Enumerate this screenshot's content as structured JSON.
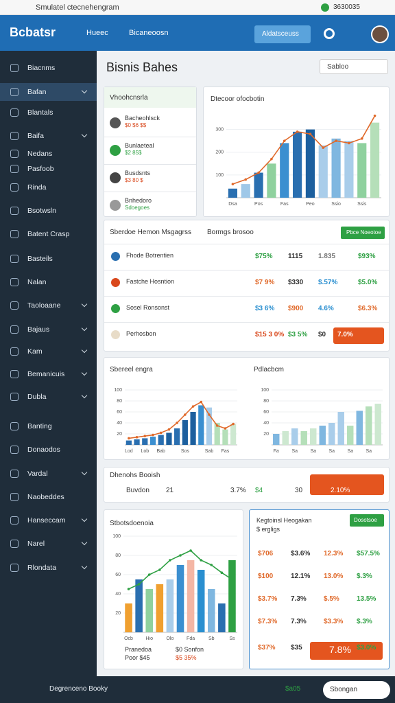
{
  "status_bar": {
    "title": "Smulatel ctecnehengram",
    "time": "3630035"
  },
  "header": {
    "logo": "Bcbatsr",
    "nav": [
      "Hueec",
      "Bicaneoosn"
    ],
    "button": "Aldatsceuss"
  },
  "sidebar": {
    "items": [
      {
        "label": "Biacnms",
        "expand": false
      },
      {
        "label": "Bafan",
        "expand": true
      },
      {
        "label": "Blantals",
        "expand": false
      },
      {
        "label": "Baifa",
        "expand": true
      },
      {
        "label": "Nedans",
        "expand": false
      },
      {
        "label": "Pasfoob",
        "expand": false
      },
      {
        "label": "Rinda",
        "expand": false
      },
      {
        "label": "Bsotwsln",
        "expand": false
      },
      {
        "label": "Batent Crasp",
        "expand": false
      },
      {
        "label": "Basteils",
        "expand": false
      },
      {
        "label": "Nalan",
        "expand": false
      },
      {
        "label": "Taoloaane",
        "expand": true
      },
      {
        "label": "Bajaus",
        "expand": true
      },
      {
        "label": "Kam",
        "expand": true
      },
      {
        "label": "Bemanicuis",
        "expand": true
      },
      {
        "label": "Dubla",
        "expand": true
      },
      {
        "label": "Banting",
        "expand": false
      },
      {
        "label": "Donaodos",
        "expand": false
      },
      {
        "label": "Vardal",
        "expand": true
      },
      {
        "label": "Naobeddes",
        "expand": false
      },
      {
        "label": "Hanseccam",
        "expand": true
      },
      {
        "label": "Narel",
        "expand": true
      },
      {
        "label": "Rlondata",
        "expand": true
      }
    ]
  },
  "page": {
    "title": "Bisnis Bahes",
    "dropdown": "Sabloo"
  },
  "list_card": {
    "title": "Vhoohcnsrla",
    "items": [
      {
        "name": "Bacheohlsck",
        "sub": "$0 $6 $$"
      },
      {
        "name": "Bunlaeteal",
        "sub": "$2 85$"
      },
      {
        "name": "Busdsnts",
        "sub": "$3 80 $"
      },
      {
        "name": "Bnhedoro",
        "sub": "Sdoegoes"
      }
    ]
  },
  "table": {
    "title": "Sberdoe Hemon Msgagrss",
    "subtitle": "Bormgs brosoo",
    "button": "Pbce Noeotoe",
    "rows": [
      {
        "name": "Fhode Botrentien",
        "cells": [
          "$75%",
          "1115",
          "1.835",
          "$93%"
        ],
        "colors": [
          "#2ea043",
          "#333",
          "#777",
          "#2ea043"
        ]
      },
      {
        "name": "Fastche Hosntion",
        "cells": [
          "$7 9%",
          "$330",
          "$.57%",
          "$5.0%"
        ],
        "colors": [
          "#e0692a",
          "#333",
          "#2a8fd0",
          "#2ea043"
        ]
      },
      {
        "name": "Sosel Ronsonst",
        "cells": [
          "$3 6%",
          "$900",
          "4.6%",
          "$6.3%"
        ],
        "colors": [
          "#2a8fd0",
          "#e0692a",
          "#2a8fd0",
          "#e0692a"
        ]
      },
      {
        "name": "Perhosbon",
        "cells": [
          "$15 3 0%",
          "$3 5%",
          "$0",
          "7.0%"
        ],
        "colors": [
          "#d9481c",
          "#2ea043",
          "#333",
          "#fff"
        ]
      }
    ]
  },
  "strip": {
    "title": "Dhenohs Booish",
    "cells": [
      "Buvdon",
      "21",
      "3.7%",
      "$4",
      "30",
      "2.10%"
    ]
  },
  "bottom_table": {
    "title": "Kegtoinsl Heogakan",
    "subtitle": "$ ergligs",
    "button": "Dosotsoe",
    "rows": [
      [
        "$706",
        "$3.6%",
        "12.3%",
        "$57.5%"
      ],
      [
        "$100",
        "12.1%",
        "13.0%",
        "$.3%"
      ],
      [
        "$3.7%",
        "7.3%",
        "$.5%",
        "13.5%"
      ],
      [
        "$7.3%",
        "7.3%",
        "$3.3%",
        "$.3%"
      ],
      [
        "$37%",
        "$35",
        "7.8%",
        "$3.0%"
      ]
    ],
    "colors": [
      "#e0692a",
      "#333",
      "#e0692a",
      "#2ea043"
    ]
  },
  "chart_footer": [
    "Pranedoa",
    "Poor $45",
    "$0 Sonfon",
    "$5 35%"
  ],
  "footer": {
    "label": "Degrenceno Booky",
    "value": "$a05",
    "button": "Sbongan"
  },
  "chart_data": [
    {
      "type": "bar",
      "title": "Dtecoor ofocbotin",
      "ylim": [
        0,
        350
      ],
      "yticks": [
        100,
        200,
        300
      ],
      "categories": [
        "Dsa",
        null,
        "Pos",
        null,
        "Fas",
        null,
        "Peo",
        null,
        "Ssio",
        null,
        "Ssis",
        null
      ],
      "series": [
        {
          "type": "bar",
          "colors": [
            "#2a6fb0",
            "#9fc8e8",
            "#2a6fb0",
            "#8fd19e",
            "#3b8fd0",
            "#2a6fb0",
            "#1c5f9e",
            "#a9cdea",
            "#7fb7e0",
            "#a9cdea",
            "#8fd19e",
            "#b5dfb9"
          ],
          "values": [
            40,
            60,
            110,
            150,
            240,
            290,
            300,
            230,
            260,
            250,
            240,
            330
          ]
        },
        {
          "type": "line",
          "color": "#e0692a",
          "values": [
            60,
            80,
            110,
            170,
            250,
            290,
            280,
            220,
            250,
            240,
            260,
            360
          ]
        }
      ]
    },
    {
      "type": "bar",
      "title": "Sbereel engra",
      "ylim": [
        0,
        100
      ],
      "yticks": [
        20,
        40,
        60,
        80,
        100
      ],
      "categories": [
        "Lod",
        null,
        "Lob",
        null,
        "Bab",
        null,
        null,
        "Sos",
        null,
        null,
        "Sab",
        null,
        "Fas",
        null
      ],
      "series": [
        {
          "type": "bar",
          "colors": [
            "#2a6fb0",
            "#2a6fb0",
            "#2a6fb0",
            "#3b8fd0",
            "#2a6fb0",
            "#1c5f9e",
            "#2a6fb0",
            "#1c5f9e",
            "#1c5f9e",
            "#3b8fd0",
            "#a9cdea",
            "#b5dfb9",
            "#b5dfb9",
            "#cde8d0"
          ],
          "values": [
            8,
            10,
            12,
            15,
            18,
            22,
            30,
            45,
            60,
            72,
            68,
            40,
            28,
            38
          ]
        },
        {
          "type": "line",
          "color": "#e0692a",
          "values": [
            12,
            14,
            16,
            18,
            22,
            28,
            40,
            55,
            70,
            78,
            55,
            35,
            30,
            38
          ]
        }
      ]
    },
    {
      "type": "bar",
      "title": "Pdlacbcm",
      "ylim": [
        0,
        100
      ],
      "yticks": [
        20,
        40,
        60,
        80,
        100
      ],
      "categories": [
        "Fa",
        null,
        "Sa",
        null,
        "Sa",
        null,
        "Sa",
        null,
        "Sa",
        null,
        "Sa",
        null
      ],
      "series": [
        {
          "type": "bar",
          "colors": [
            "#7fb7e0",
            "#cde8d0",
            "#a9cdea",
            "#b5dfb9",
            "#cde8d0",
            "#7fb7e0",
            "#a9cdea",
            "#a9cdea",
            "#b5dfb9",
            "#7fb7e0",
            "#b5dfb9",
            "#cde8d0"
          ],
          "values": [
            20,
            25,
            30,
            25,
            30,
            35,
            40,
            60,
            35,
            62,
            70,
            75
          ]
        }
      ]
    },
    {
      "type": "bar",
      "title": "Stbotsdoenoia",
      "ylim": [
        0,
        100
      ],
      "yticks": [
        20,
        40,
        60,
        80,
        100
      ],
      "categories": [
        "Ocb",
        null,
        "Hio",
        null,
        "Olo",
        null,
        "Fda",
        null,
        "Sb",
        null,
        "Ss"
      ],
      "series": [
        {
          "type": "bar",
          "colors": [
            "#f0a030",
            "#2a6fb0",
            "#8fd19e",
            "#f0a030",
            "#a9cdea",
            "#3b8fd0",
            "#f4b6a4",
            "#2a8fd0",
            "#7fb7e0",
            "#2a6fb0",
            "#2ea043"
          ],
          "values": [
            30,
            55,
            45,
            50,
            55,
            70,
            75,
            65,
            45,
            30,
            75
          ]
        },
        {
          "type": "line",
          "color": "#2ea043",
          "values": [
            45,
            50,
            60,
            65,
            75,
            80,
            85,
            75,
            70,
            62,
            55
          ]
        }
      ]
    }
  ]
}
